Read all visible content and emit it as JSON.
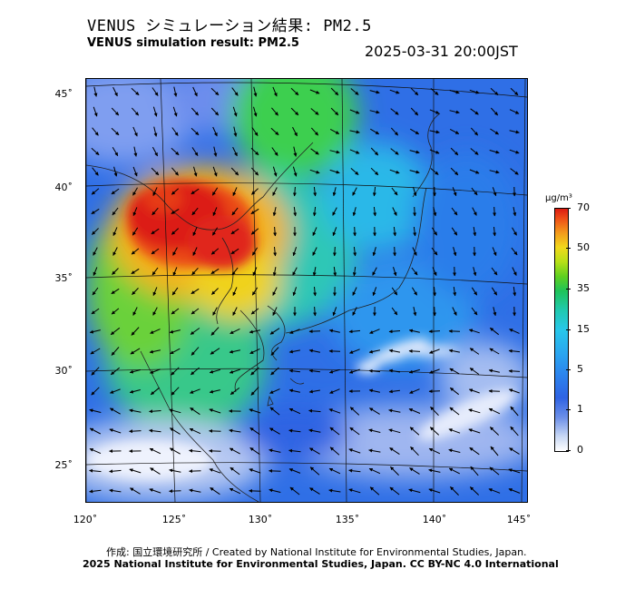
{
  "title_jp": "VENUS シミュレーション結果: PM2.5",
  "title_en": "VENUS simulation result: PM2.5",
  "timestamp": "2025-03-31 20:00JST",
  "map": {
    "latitude_labels": [
      "45˚",
      "40˚",
      "35˚",
      "30˚",
      "25˚"
    ],
    "longitude_labels": [
      "120˚",
      "125˚",
      "130˚",
      "135˚",
      "140˚",
      "145˚"
    ],
    "colors": {
      "ocean_low": "#2f63e3",
      "clean_air": "#c8d8f4",
      "high_pm": "#dc1c12",
      "medium_pm": "#f1d81c",
      "green_pm": "#1fc35a"
    }
  },
  "colorbar": {
    "unit": "μg/m³",
    "ticks": [
      "70",
      "50",
      "35",
      "15",
      "5",
      "1",
      "0"
    ]
  },
  "credit_jp": "作成: 国立環境研究所 / Created by National Institute for Environmental Studies, Japan.",
  "credit_en": "2025 National Institute for Environmental Studies, Japan. CC BY-NC 4.0 International"
}
